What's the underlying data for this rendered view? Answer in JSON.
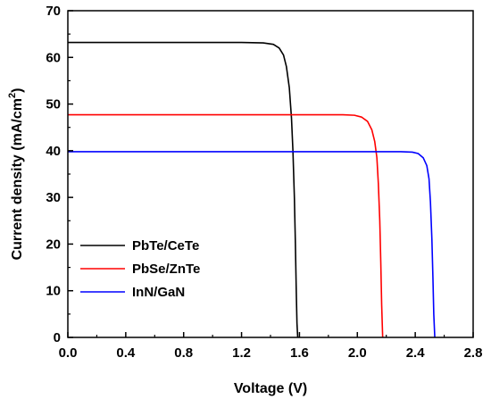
{
  "chart_data": {
    "type": "line",
    "xlabel": "Voltage (V)",
    "ylabel": "Current density  (mA/cm²)",
    "ylabel_main": "Current density  (mA/cm",
    "ylabel_sup": "2",
    "ylabel_end": ")",
    "xlim": [
      0.0,
      2.8
    ],
    "ylim": [
      0,
      70
    ],
    "xticks": [
      "0.0",
      "0.4",
      "0.8",
      "1.2",
      "1.6",
      "2.0",
      "2.4",
      "2.8"
    ],
    "yticks": [
      "0",
      "10",
      "20",
      "30",
      "40",
      "50",
      "60",
      "70"
    ],
    "grid": false,
    "legend_position": "lower-left",
    "series": [
      {
        "name": "PbTe/CeTe",
        "color": "#000000",
        "x": [
          0.0,
          0.4,
          0.8,
          1.2,
          1.35,
          1.42,
          1.46,
          1.49,
          1.51,
          1.53,
          1.545,
          1.555,
          1.565,
          1.572,
          1.578,
          1.583,
          1.588
        ],
        "y": [
          63.2,
          63.2,
          63.2,
          63.2,
          63.1,
          62.8,
          62.0,
          60.5,
          58.0,
          53.5,
          47.0,
          40.0,
          30.0,
          20.0,
          10.0,
          3.0,
          0.0
        ]
      },
      {
        "name": "PbSe/ZnTe",
        "color": "#ff0000",
        "x": [
          0.0,
          0.4,
          0.8,
          1.2,
          1.6,
          1.9,
          1.98,
          2.03,
          2.07,
          2.1,
          2.12,
          2.135,
          2.145,
          2.155,
          2.162,
          2.168,
          2.175
        ],
        "y": [
          47.7,
          47.7,
          47.7,
          47.7,
          47.7,
          47.7,
          47.6,
          47.2,
          46.3,
          44.5,
          42.0,
          38.5,
          33.0,
          25.0,
          16.0,
          7.0,
          0.0
        ]
      },
      {
        "name": "InN/GaN",
        "color": "#0000ff",
        "x": [
          0.0,
          0.4,
          0.8,
          1.2,
          1.6,
          2.0,
          2.3,
          2.38,
          2.42,
          2.455,
          2.48,
          2.495,
          2.505,
          2.515,
          2.522,
          2.528,
          2.535
        ],
        "y": [
          39.8,
          39.8,
          39.8,
          39.8,
          39.8,
          39.8,
          39.8,
          39.7,
          39.4,
          38.5,
          36.8,
          34.0,
          29.0,
          21.0,
          13.0,
          5.0,
          0.0
        ]
      }
    ]
  }
}
